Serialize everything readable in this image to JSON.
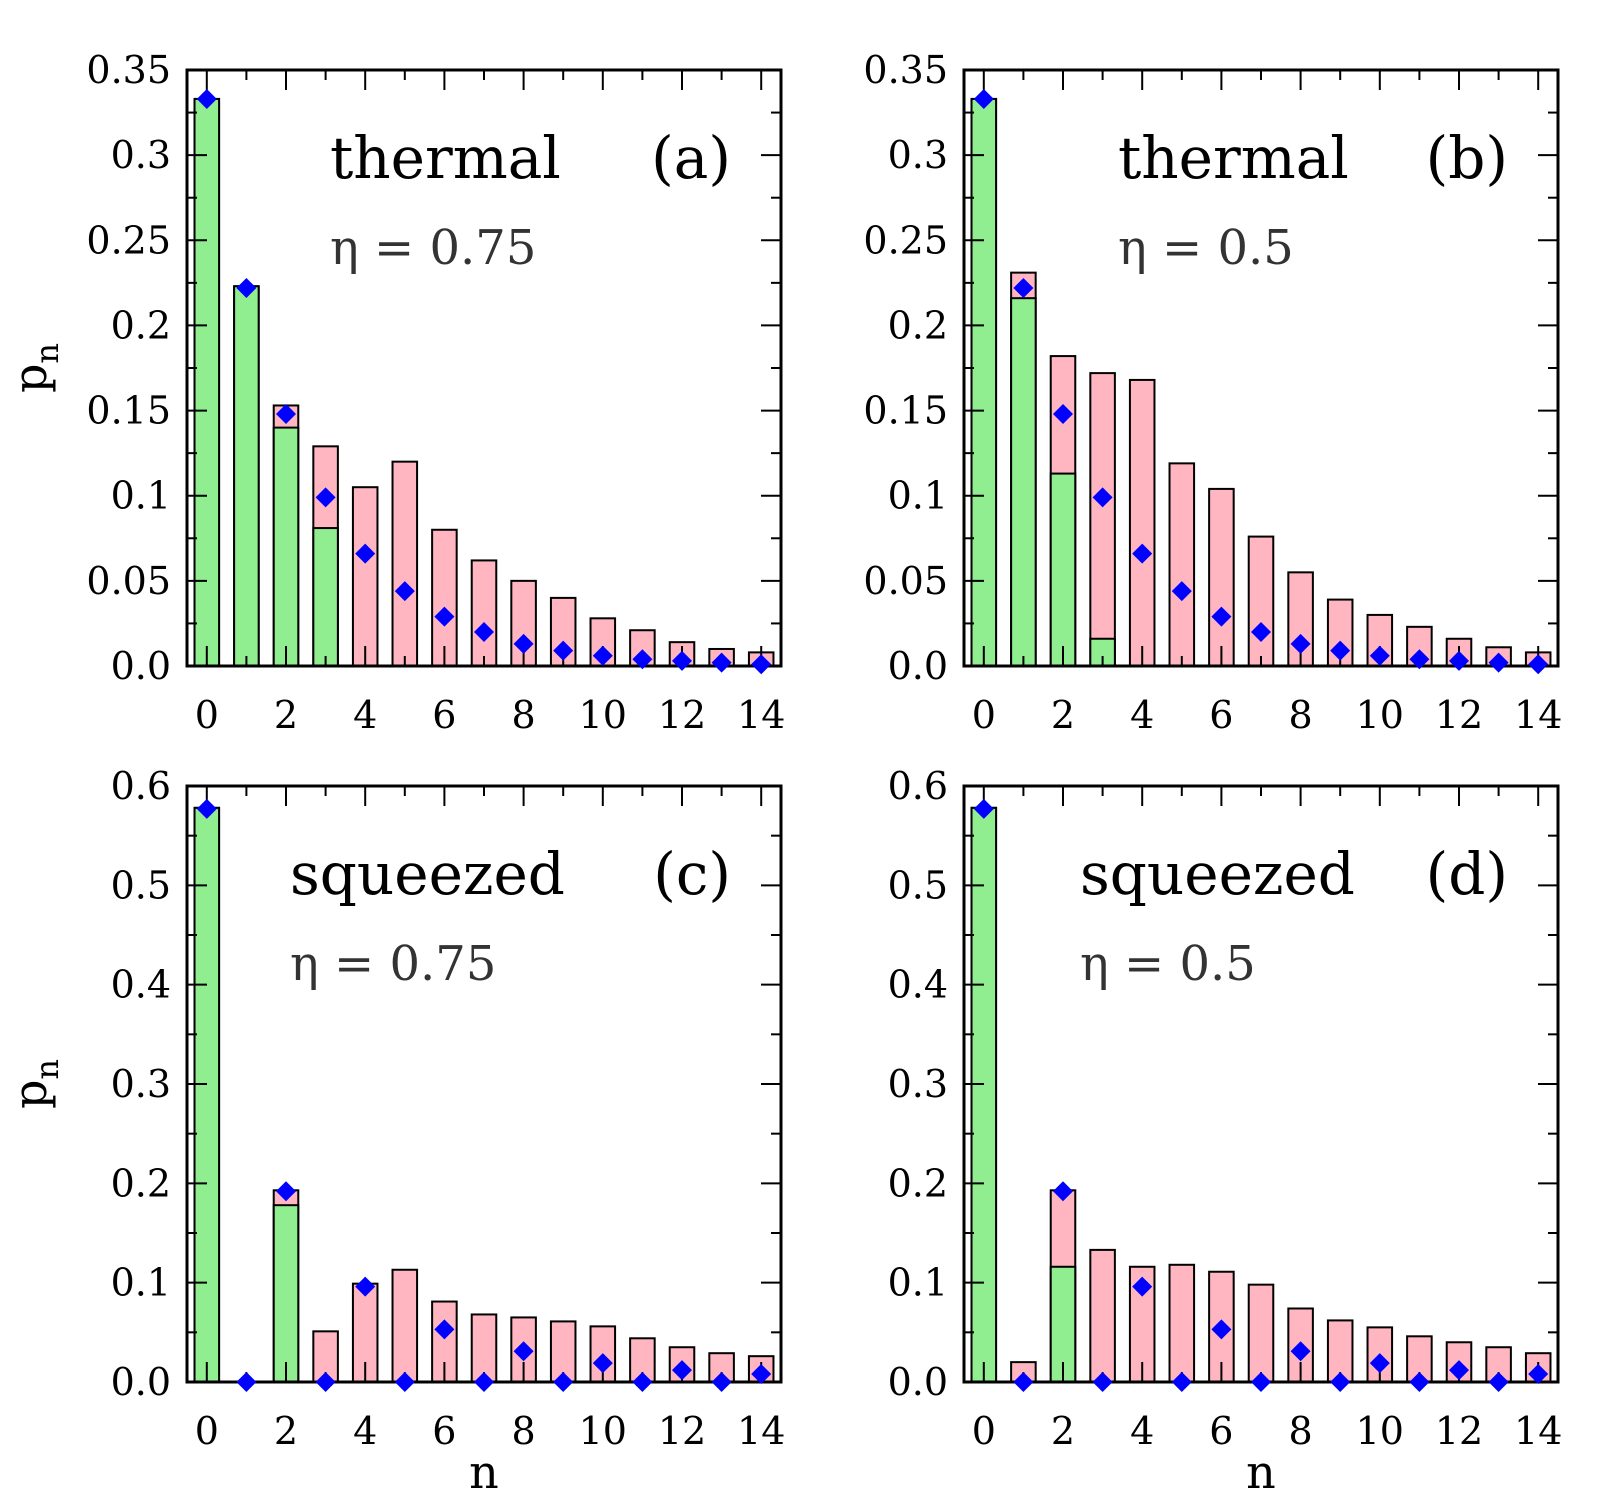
{
  "colors": {
    "green_bar": "#90EE90",
    "pink_bar": "#FFB6C1",
    "marker": "#0000FF",
    "outline": "#000000"
  },
  "chart_data": [
    {
      "type": "bar",
      "panel": "(a)",
      "state": "thermal",
      "eta_label": "η = 0.75",
      "xlabel": "",
      "ylabel": "p_n",
      "ylim": [
        0,
        0.35
      ],
      "yticks": [
        0,
        0.05,
        0.1,
        0.15,
        0.2,
        0.25,
        0.3,
        0.35
      ],
      "ytick_labels": [
        "0.0",
        "0.05",
        "0.1",
        "0.15",
        "0.2",
        "0.25",
        "0.3",
        "0.35"
      ],
      "xticks": [
        0,
        2,
        4,
        6,
        8,
        10,
        12,
        14
      ],
      "x": [
        0,
        1,
        2,
        3,
        4,
        5,
        6,
        7,
        8,
        9,
        10,
        11,
        12,
        13,
        14
      ],
      "series": [
        {
          "kind": "bar_total",
          "values": [
            0.333,
            0.223,
            0.153,
            0.129,
            0.105,
            0.12,
            0.08,
            0.062,
            0.05,
            0.04,
            0.028,
            0.021,
            0.014,
            0.01,
            0.008
          ]
        },
        {
          "kind": "bar_green",
          "values": [
            0.333,
            0.223,
            0.14,
            0.081,
            0,
            0,
            0,
            0,
            0,
            0,
            0,
            0,
            0,
            0,
            0
          ]
        },
        {
          "kind": "marker",
          "values": [
            0.333,
            0.222,
            0.148,
            0.099,
            0.066,
            0.044,
            0.029,
            0.02,
            0.013,
            0.009,
            0.006,
            0.004,
            0.003,
            0.002,
            0.001
          ]
        }
      ]
    },
    {
      "type": "bar",
      "panel": "(b)",
      "state": "thermal",
      "eta_label": "η = 0.5",
      "xlabel": "",
      "ylabel": "",
      "ylim": [
        0,
        0.35
      ],
      "yticks": [
        0,
        0.05,
        0.1,
        0.15,
        0.2,
        0.25,
        0.3,
        0.35
      ],
      "ytick_labels": [
        "0.0",
        "0.05",
        "0.1",
        "0.15",
        "0.2",
        "0.25",
        "0.3",
        "0.35"
      ],
      "xticks": [
        0,
        2,
        4,
        6,
        8,
        10,
        12,
        14
      ],
      "x": [
        0,
        1,
        2,
        3,
        4,
        5,
        6,
        7,
        8,
        9,
        10,
        11,
        12,
        13,
        14
      ],
      "series": [
        {
          "kind": "bar_total",
          "values": [
            0.333,
            0.231,
            0.182,
            0.172,
            0.168,
            0.119,
            0.104,
            0.076,
            0.055,
            0.039,
            0.03,
            0.023,
            0.016,
            0.011,
            0.008
          ]
        },
        {
          "kind": "bar_green",
          "values": [
            0.333,
            0.216,
            0.113,
            0.016,
            0,
            0,
            0,
            0,
            0,
            0,
            0,
            0,
            0,
            0,
            0
          ]
        },
        {
          "kind": "marker",
          "values": [
            0.333,
            0.222,
            0.148,
            0.099,
            0.066,
            0.044,
            0.029,
            0.02,
            0.013,
            0.009,
            0.006,
            0.004,
            0.003,
            0.002,
            0.001
          ]
        }
      ]
    },
    {
      "type": "bar",
      "panel": "(c)",
      "state": "squeezed",
      "eta_label": "η = 0.75",
      "xlabel": "n",
      "ylabel": "p_n",
      "ylim": [
        0,
        0.6
      ],
      "yticks": [
        0,
        0.1,
        0.2,
        0.3,
        0.4,
        0.5,
        0.6
      ],
      "ytick_labels": [
        "0.0",
        "0.1",
        "0.2",
        "0.3",
        "0.4",
        "0.5",
        "0.6"
      ],
      "xticks": [
        0,
        2,
        4,
        6,
        8,
        10,
        12,
        14
      ],
      "x": [
        0,
        1,
        2,
        3,
        4,
        5,
        6,
        7,
        8,
        9,
        10,
        11,
        12,
        13,
        14
      ],
      "series": [
        {
          "kind": "bar_total",
          "values": [
            0.578,
            0,
            0.193,
            0.051,
            0.099,
            0.113,
            0.081,
            0.068,
            0.065,
            0.061,
            0.056,
            0.044,
            0.035,
            0.029,
            0.026
          ]
        },
        {
          "kind": "bar_green",
          "values": [
            0.578,
            0,
            0.178,
            0,
            0,
            0,
            0,
            0,
            0,
            0,
            0,
            0,
            0,
            0,
            0
          ]
        },
        {
          "kind": "marker",
          "values": [
            0.577,
            0,
            0.192,
            0,
            0.096,
            0,
            0.053,
            0,
            0.031,
            0,
            0.019,
            0,
            0.012,
            0,
            0.008
          ]
        }
      ]
    },
    {
      "type": "bar",
      "panel": "(d)",
      "state": "squeezed",
      "eta_label": "η = 0.5",
      "xlabel": "n",
      "ylabel": "",
      "ylim": [
        0,
        0.6
      ],
      "yticks": [
        0,
        0.1,
        0.2,
        0.3,
        0.4,
        0.5,
        0.6
      ],
      "ytick_labels": [
        "0.0",
        "0.1",
        "0.2",
        "0.3",
        "0.4",
        "0.5",
        "0.6"
      ],
      "xticks": [
        0,
        2,
        4,
        6,
        8,
        10,
        12,
        14
      ],
      "x": [
        0,
        1,
        2,
        3,
        4,
        5,
        6,
        7,
        8,
        9,
        10,
        11,
        12,
        13,
        14
      ],
      "series": [
        {
          "kind": "bar_total",
          "values": [
            0.578,
            0.02,
            0.193,
            0.133,
            0.116,
            0.118,
            0.111,
            0.098,
            0.074,
            0.062,
            0.055,
            0.046,
            0.04,
            0.035,
            0.029
          ]
        },
        {
          "kind": "bar_green",
          "values": [
            0.578,
            0,
            0.116,
            0,
            0,
            0,
            0,
            0,
            0,
            0,
            0,
            0,
            0,
            0,
            0
          ]
        },
        {
          "kind": "marker",
          "values": [
            0.577,
            0,
            0.192,
            0,
            0.096,
            0,
            0.053,
            0,
            0.031,
            0,
            0.019,
            0,
            0.012,
            0,
            0.008
          ]
        }
      ]
    }
  ]
}
